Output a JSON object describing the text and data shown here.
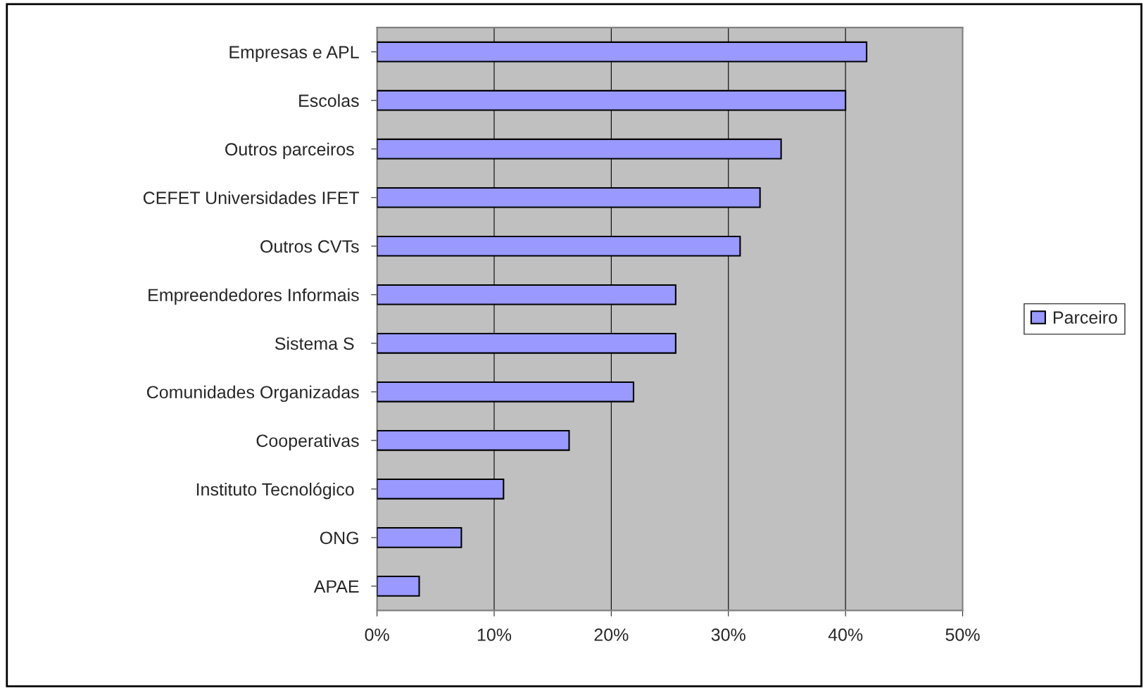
{
  "chart_data": {
    "type": "bar",
    "orientation": "horizontal",
    "categories": [
      "Empresas e APL",
      "Escolas",
      "Outros parceiros ",
      "CEFET Universidades IFET",
      "Outros CVTs",
      "Empreendedores Informais",
      "Sistema S ",
      "Comunidades Organizadas",
      "Cooperativas",
      "Instituto Tecnológico ",
      "ONG",
      "APAE"
    ],
    "series": [
      {
        "name": "Parceiro",
        "color": "#9999ff",
        "values": [
          41.8,
          40.0,
          34.5,
          32.7,
          31.0,
          25.5,
          25.5,
          21.9,
          16.4,
          10.8,
          7.2,
          3.6
        ]
      }
    ],
    "xlim": [
      0,
      50
    ],
    "xticks": [
      {
        "value": 0,
        "label": "0%"
      },
      {
        "value": 10,
        "label": "10%"
      },
      {
        "value": 20,
        "label": "20%"
      },
      {
        "value": 30,
        "label": "30%"
      },
      {
        "value": 40,
        "label": "40%"
      },
      {
        "value": 50,
        "label": "50%"
      }
    ],
    "grid": "x",
    "legend": "right"
  }
}
